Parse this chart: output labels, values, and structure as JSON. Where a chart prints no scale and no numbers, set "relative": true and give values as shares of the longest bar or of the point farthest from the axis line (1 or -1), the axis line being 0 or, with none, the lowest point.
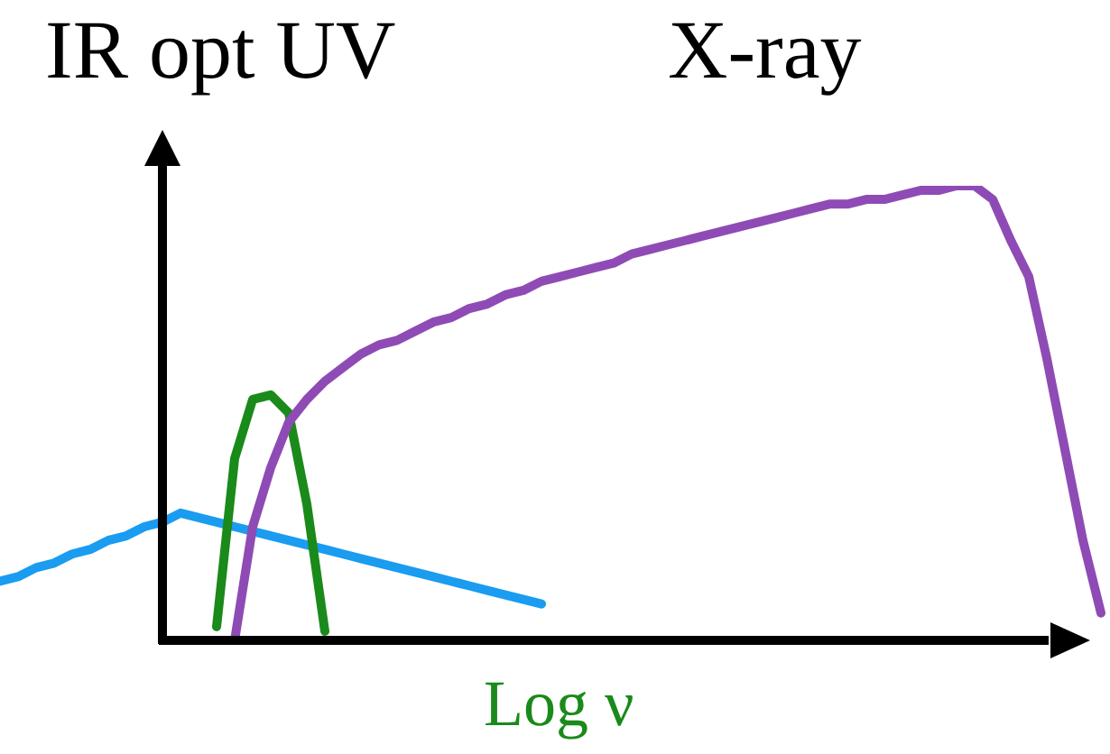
{
  "chart_data": {
    "type": "line",
    "relative": true,
    "xlabel": "Log ν",
    "annotations": [
      "IR opt UV",
      "X-ray"
    ],
    "categories": [
      null,
      null,
      null,
      null,
      null,
      null,
      null,
      null,
      null,
      null,
      null,
      null,
      null,
      null,
      null,
      null,
      null,
      null,
      null,
      null,
      null,
      null,
      null,
      null,
      null,
      null,
      null,
      null,
      null,
      null,
      null,
      null,
      null,
      null,
      null,
      null,
      null,
      null,
      null,
      null,
      null,
      null,
      null,
      null,
      null,
      null,
      null,
      null,
      null,
      null,
      null,
      null,
      null,
      null,
      null,
      null,
      null,
      null,
      null,
      null,
      null,
      null
    ],
    "series": [
      {
        "color": "#1a9cf0",
        "values": [
          0.13,
          0.14,
          0.16,
          0.17,
          0.19,
          0.2,
          0.22,
          0.23,
          0.25,
          0.26,
          0.28,
          0.27,
          0.26,
          0.25,
          0.24,
          0.23,
          0.22,
          0.21,
          0.2,
          0.19,
          0.18,
          0.17,
          0.16,
          0.15,
          0.14,
          0.13,
          0.12,
          0.11,
          0.1,
          0.09,
          0.08,
          null,
          null,
          null,
          null,
          null,
          null,
          null,
          null,
          null,
          null,
          null,
          null,
          null,
          null,
          null,
          null,
          null,
          null,
          null,
          null,
          null,
          null,
          null,
          null,
          null,
          null,
          null,
          null,
          null,
          null,
          null
        ]
      },
      {
        "color": "#1a8a1a",
        "values": [
          null,
          null,
          null,
          null,
          null,
          null,
          null,
          null,
          null,
          null,
          null,
          null,
          0.03,
          0.4,
          0.53,
          0.54,
          0.5,
          0.3,
          0.02,
          null,
          null,
          null,
          null,
          null,
          null,
          null,
          null,
          null,
          null,
          null,
          null,
          null,
          null,
          null,
          null,
          null,
          null,
          null,
          null,
          null,
          null,
          null,
          null,
          null,
          null,
          null,
          null,
          null,
          null,
          null,
          null,
          null,
          null,
          null,
          null,
          null,
          null,
          null,
          null,
          null,
          null,
          null
        ]
      },
      {
        "color": "#8e4bb5",
        "values": [
          null,
          null,
          null,
          null,
          null,
          null,
          null,
          null,
          null,
          null,
          null,
          null,
          null,
          0.0,
          0.25,
          0.38,
          0.48,
          0.53,
          0.57,
          0.6,
          0.63,
          0.65,
          0.66,
          0.68,
          0.7,
          0.71,
          0.73,
          0.74,
          0.76,
          0.77,
          0.79,
          0.8,
          0.81,
          0.82,
          0.83,
          0.85,
          0.86,
          0.87,
          0.88,
          0.89,
          0.9,
          0.91,
          0.92,
          0.93,
          0.94,
          0.95,
          0.96,
          0.96,
          0.97,
          0.97,
          0.98,
          0.99,
          0.99,
          1,
          1,
          0.97,
          0.88,
          0.8,
          0.62,
          0.42,
          0.22,
          0.06
        ]
      }
    ]
  }
}
